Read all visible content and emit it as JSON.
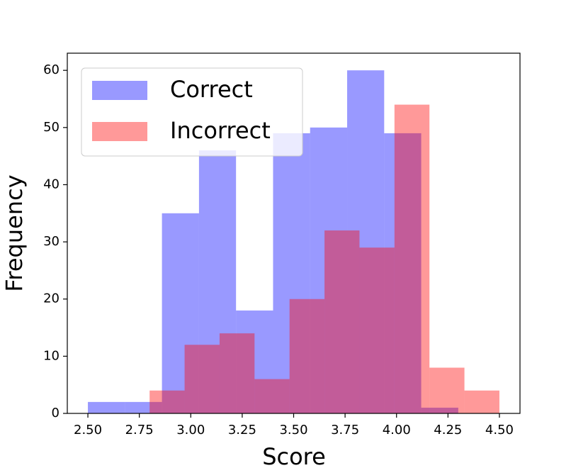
{
  "chart_data": {
    "type": "histogram",
    "x_label": "Score",
    "y_label": "Frequency",
    "series": [
      {
        "name": "Correct",
        "color": "#0000ff",
        "alpha": 0.4,
        "bins": [
          2.5,
          2.68,
          2.86,
          3.04,
          3.22,
          3.4,
          3.58,
          3.76,
          3.94,
          4.12,
          4.3
        ],
        "values": [
          2,
          2,
          35,
          46,
          18,
          49,
          50,
          60,
          49,
          1
        ]
      },
      {
        "name": "Incorrect",
        "color": "#ff0000",
        "alpha": 0.4,
        "bins": [
          2.8,
          2.97,
          3.14,
          3.31,
          3.48,
          3.65,
          3.82,
          3.99,
          4.16,
          4.33,
          4.5
        ],
        "values": [
          4,
          12,
          14,
          6,
          20,
          32,
          29,
          54,
          8,
          4
        ]
      }
    ],
    "xlim": [
      2.4,
      4.6
    ],
    "ylim": [
      0,
      63
    ],
    "xticks": [
      {
        "value": 2.5,
        "label": "2.50"
      },
      {
        "value": 2.75,
        "label": "2.75"
      },
      {
        "value": 3.0,
        "label": "3.00"
      },
      {
        "value": 3.25,
        "label": "3.25"
      },
      {
        "value": 3.5,
        "label": "3.50"
      },
      {
        "value": 3.75,
        "label": "3.75"
      },
      {
        "value": 4.0,
        "label": "4.00"
      },
      {
        "value": 4.25,
        "label": "4.25"
      },
      {
        "value": 4.5,
        "label": "4.50"
      }
    ],
    "yticks": [
      0,
      10,
      20,
      30,
      40,
      50,
      60
    ],
    "grid": false,
    "legend": "upper left"
  }
}
